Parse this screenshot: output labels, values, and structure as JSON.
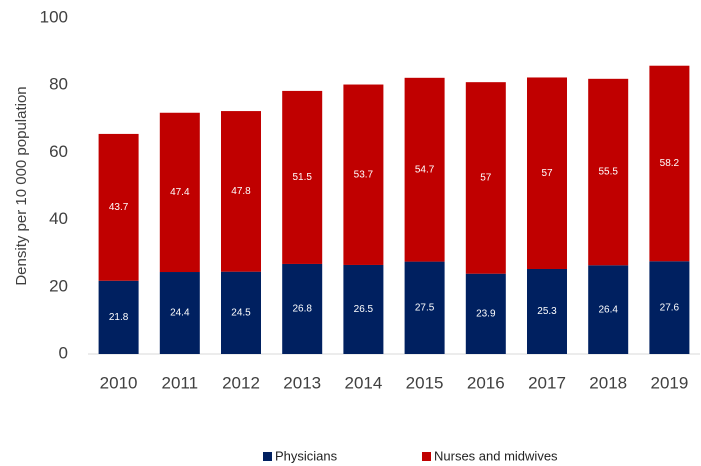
{
  "chart_data": {
    "type": "stacked_bar",
    "y_axis_label": "Density per 10 000 population",
    "categories": [
      "2010",
      "2011",
      "2012",
      "2013",
      "2014",
      "2015",
      "2016",
      "2017",
      "2018",
      "2019"
    ],
    "series": [
      {
        "name": "Physicians",
        "color": "#002060",
        "values": [
          21.8,
          24.4,
          24.5,
          26.8,
          26.5,
          27.5,
          23.9,
          25.3,
          26.4,
          27.6
        ]
      },
      {
        "name": "Nurses and midwives",
        "color": "#c00000",
        "values": [
          43.7,
          47.4,
          47.8,
          51.5,
          53.7,
          54.7,
          57,
          57,
          55.5,
          58.2
        ]
      }
    ],
    "ylim": [
      0,
      100
    ],
    "yticks": [
      0,
      20,
      40,
      60,
      80,
      100
    ]
  }
}
